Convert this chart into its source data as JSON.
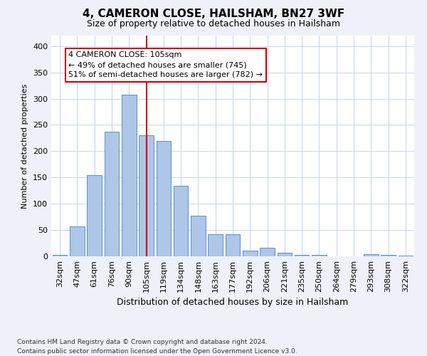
{
  "title": "4, CAMERON CLOSE, HAILSHAM, BN27 3WF",
  "subtitle": "Size of property relative to detached houses in Hailsham",
  "xlabel": "Distribution of detached houses by size in Hailsham",
  "ylabel": "Number of detached properties",
  "categories": [
    "32sqm",
    "47sqm",
    "61sqm",
    "76sqm",
    "90sqm",
    "105sqm",
    "119sqm",
    "134sqm",
    "148sqm",
    "163sqm",
    "177sqm",
    "192sqm",
    "206sqm",
    "221sqm",
    "235sqm",
    "250sqm",
    "264sqm",
    "279sqm",
    "293sqm",
    "308sqm",
    "322sqm"
  ],
  "values": [
    3,
    57,
    155,
    237,
    307,
    231,
    219,
    134,
    77,
    42,
    42,
    11,
    16,
    7,
    3,
    3,
    0,
    0,
    4,
    3,
    2
  ],
  "bar_color": "#aec6e8",
  "bar_edgecolor": "#5b8fc9",
  "vline_x": 5,
  "vline_color": "#cc0000",
  "annotation_line1": "4 CAMERON CLOSE: 105sqm",
  "annotation_line2": "← 49% of detached houses are smaller (745)",
  "annotation_line3": "51% of semi-detached houses are larger (782) →",
  "annotation_box_color": "#ffffff",
  "annotation_box_edgecolor": "#cc0000",
  "ylim": [
    0,
    420
  ],
  "yticks": [
    0,
    50,
    100,
    150,
    200,
    250,
    300,
    350,
    400
  ],
  "footnote1": "Contains HM Land Registry data © Crown copyright and database right 2024.",
  "footnote2": "Contains public sector information licensed under the Open Government Licence v3.0.",
  "background_color": "#eef2f8",
  "plot_background_color": "#ffffff",
  "grid_color": "#c8d4e8",
  "title_fontsize": 11,
  "subtitle_fontsize": 9,
  "ylabel_fontsize": 8,
  "xlabel_fontsize": 9,
  "tick_fontsize": 8,
  "annot_fontsize": 8,
  "footnote_fontsize": 6.5
}
